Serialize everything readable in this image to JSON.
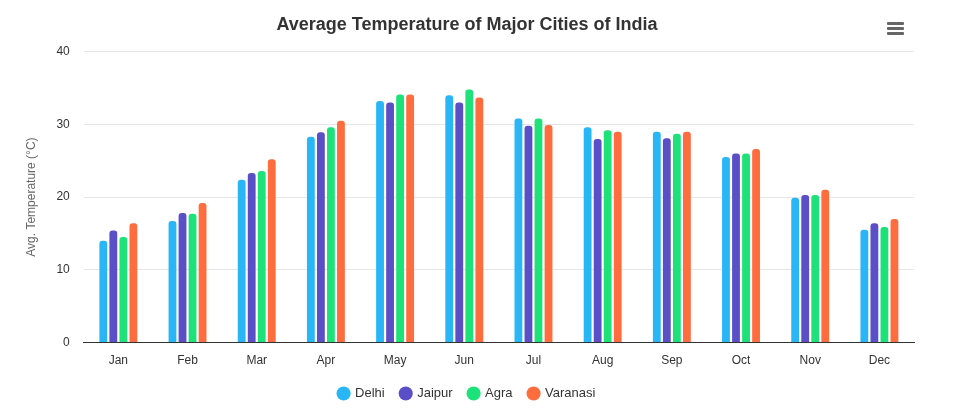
{
  "chart_data": {
    "type": "bar",
    "title": "Average Temperature of Major Cities of India",
    "ylabel": "Avg. Temperature (°C)",
    "categories": [
      "Jan",
      "Feb",
      "Mar",
      "Apr",
      "May",
      "Jun",
      "Jul",
      "Aug",
      "Sep",
      "Oct",
      "Nov",
      "Dec"
    ],
    "series": [
      {
        "name": "Delhi",
        "color": "#29b6f6",
        "values": [
          14,
          16.7,
          22.4,
          28.3,
          33.2,
          34,
          30.8,
          29.6,
          29,
          25.5,
          19.9,
          15.5
        ]
      },
      {
        "name": "Jaipur",
        "color": "#5b4fc7",
        "values": [
          15.4,
          17.8,
          23.3,
          28.9,
          33,
          33,
          29.8,
          28,
          28.1,
          26,
          20.3,
          16.4
        ]
      },
      {
        "name": "Agra",
        "color": "#1de27a",
        "values": [
          14.5,
          17.7,
          23.6,
          29.6,
          34.1,
          34.8,
          30.8,
          29.2,
          28.7,
          26,
          20.3,
          15.9
        ]
      },
      {
        "name": "Varanasi",
        "color": "#ff6d3f",
        "values": [
          16.4,
          19.2,
          25.2,
          30.5,
          34.1,
          33.7,
          29.9,
          29,
          29,
          26.6,
          21,
          17
        ]
      }
    ],
    "ylim": [
      0,
      40
    ],
    "yticks": [
      0,
      10,
      20,
      30,
      40
    ],
    "grid": true,
    "legend": "bottom"
  }
}
